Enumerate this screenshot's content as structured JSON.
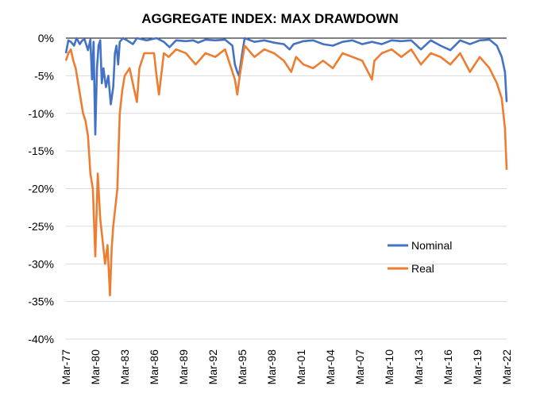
{
  "chart_data": {
    "type": "line",
    "title": "AGGREGATE INDEX: MAX DRAWDOWN",
    "xlabel": "",
    "ylabel": "",
    "x_ticks": [
      "Mar-77",
      "Mar-80",
      "Mar-83",
      "Mar-86",
      "Mar-89",
      "Mar-92",
      "Mar-95",
      "Mar-98",
      "Mar-01",
      "Mar-04",
      "Mar-07",
      "Mar-10",
      "Mar-13",
      "Mar-16",
      "Mar-19",
      "Mar-22"
    ],
    "x_range": [
      "1977-03",
      "2022-03"
    ],
    "y_ticks": [
      "0%",
      "-5%",
      "-10%",
      "-15%",
      "-20%",
      "-25%",
      "-30%",
      "-35%",
      "-40%"
    ],
    "ylim": [
      -40,
      0
    ],
    "grid": "horizontal",
    "legend_position": "lower-right",
    "series": [
      {
        "name": "Nominal",
        "color": "#4472C4",
        "points": [
          [
            "1977-03",
            -2.0
          ],
          [
            "1977-06",
            -0.3
          ],
          [
            "1977-09",
            -0.5
          ],
          [
            "1978-01",
            -1.0
          ],
          [
            "1978-04",
            0
          ],
          [
            "1978-08",
            -0.8
          ],
          [
            "1978-11",
            -0.3
          ],
          [
            "1979-02",
            -0.2
          ],
          [
            "1979-06",
            -1.6
          ],
          [
            "1979-09",
            -0.2
          ],
          [
            "1979-11",
            -5.5
          ],
          [
            "1980-01",
            -0.5
          ],
          [
            "1980-02",
            -7.5
          ],
          [
            "1980-03",
            -12.8
          ],
          [
            "1980-05",
            -4.0
          ],
          [
            "1980-07",
            -1.0
          ],
          [
            "1980-09",
            -0.3
          ],
          [
            "1980-11",
            -6.0
          ],
          [
            "1981-01",
            -4.0
          ],
          [
            "1981-04",
            -6.5
          ],
          [
            "1981-07",
            -5.0
          ],
          [
            "1981-10",
            -8.8
          ],
          [
            "1982-01",
            -6.5
          ],
          [
            "1982-03",
            -2.0
          ],
          [
            "1982-05",
            -1.0
          ],
          [
            "1982-07",
            -3.5
          ],
          [
            "1982-09",
            -0.5
          ],
          [
            "1983-01",
            0
          ],
          [
            "1983-06",
            -0.3
          ],
          [
            "1984-01",
            -0.8
          ],
          [
            "1984-06",
            0
          ],
          [
            "1985-06",
            -0.3
          ],
          [
            "1986-06",
            0
          ],
          [
            "1987-03",
            -0.5
          ],
          [
            "1987-10",
            -1.2
          ],
          [
            "1988-06",
            -0.3
          ],
          [
            "1989-06",
            -0.4
          ],
          [
            "1990-03",
            -0.3
          ],
          [
            "1990-09",
            -0.6
          ],
          [
            "1991-06",
            -0.2
          ],
          [
            "1992-06",
            -0.3
          ],
          [
            "1993-06",
            -0.2
          ],
          [
            "1994-03",
            -1.0
          ],
          [
            "1994-06",
            -3.5
          ],
          [
            "1994-09",
            -4.5
          ],
          [
            "1994-11",
            -5.0
          ],
          [
            "1995-03",
            -2.0
          ],
          [
            "1995-06",
            0
          ],
          [
            "1996-06",
            -0.5
          ],
          [
            "1997-06",
            -0.3
          ],
          [
            "1998-06",
            -0.6
          ],
          [
            "1999-06",
            -0.8
          ],
          [
            "2000-01",
            -1.5
          ],
          [
            "2000-06",
            -0.8
          ],
          [
            "2001-06",
            -0.4
          ],
          [
            "2002-06",
            -0.3
          ],
          [
            "2003-06",
            -0.8
          ],
          [
            "2004-06",
            -1.0
          ],
          [
            "2005-06",
            -0.5
          ],
          [
            "2006-06",
            -0.3
          ],
          [
            "2007-06",
            -0.8
          ],
          [
            "2008-06",
            -0.5
          ],
          [
            "2009-06",
            -0.8
          ],
          [
            "2010-06",
            -0.3
          ],
          [
            "2011-06",
            -0.4
          ],
          [
            "2012-06",
            -0.3
          ],
          [
            "2013-06",
            -1.5
          ],
          [
            "2014-06",
            -0.3
          ],
          [
            "2015-06",
            -1.0
          ],
          [
            "2016-06",
            -1.6
          ],
          [
            "2017-06",
            -0.3
          ],
          [
            "2018-06",
            -0.8
          ],
          [
            "2019-06",
            -0.3
          ],
          [
            "2020-06",
            -0.2
          ],
          [
            "2021-03",
            -1.0
          ],
          [
            "2021-09",
            -2.5
          ],
          [
            "2022-01",
            -4.5
          ],
          [
            "2022-03",
            -8.5
          ]
        ]
      },
      {
        "name": "Real",
        "color": "#ED7D31",
        "points": [
          [
            "1977-03",
            -3.0
          ],
          [
            "1977-06",
            -2.0
          ],
          [
            "1977-09",
            -1.5
          ],
          [
            "1977-12",
            -3.0
          ],
          [
            "1978-03",
            -4.0
          ],
          [
            "1978-06",
            -6.0
          ],
          [
            "1978-09",
            -8.0
          ],
          [
            "1978-12",
            -10.0
          ],
          [
            "1979-03",
            -11.0
          ],
          [
            "1979-06",
            -13.0
          ],
          [
            "1979-09",
            -18.0
          ],
          [
            "1979-12",
            -20.0
          ],
          [
            "1980-03",
            -29.0
          ],
          [
            "1980-06",
            -18.0
          ],
          [
            "1980-09",
            -24.0
          ],
          [
            "1980-12",
            -27.0
          ],
          [
            "1981-03",
            -30.0
          ],
          [
            "1981-06",
            -27.5
          ],
          [
            "1981-09",
            -34.2
          ],
          [
            "1981-11",
            -28.0
          ],
          [
            "1982-01",
            -25.0
          ],
          [
            "1982-03",
            -23.0
          ],
          [
            "1982-06",
            -20.0
          ],
          [
            "1982-09",
            -10.0
          ],
          [
            "1982-12",
            -7.0
          ],
          [
            "1983-03",
            -5.0
          ],
          [
            "1983-09",
            -4.0
          ],
          [
            "1984-03",
            -7.0
          ],
          [
            "1984-06",
            -8.5
          ],
          [
            "1984-09",
            -4.0
          ],
          [
            "1985-03",
            -2.0
          ],
          [
            "1986-03",
            -2.0
          ],
          [
            "1986-06",
            -5.0
          ],
          [
            "1986-09",
            -7.5
          ],
          [
            "1987-03",
            -2.0
          ],
          [
            "1987-09",
            -2.5
          ],
          [
            "1988-06",
            -1.5
          ],
          [
            "1989-06",
            -2.0
          ],
          [
            "1990-06",
            -3.5
          ],
          [
            "1991-06",
            -2.0
          ],
          [
            "1992-06",
            -2.5
          ],
          [
            "1993-06",
            -1.5
          ],
          [
            "1994-06",
            -5.5
          ],
          [
            "1994-09",
            -7.5
          ],
          [
            "1994-12",
            -5.0
          ],
          [
            "1995-06",
            -1.0
          ],
          [
            "1996-06",
            -2.5
          ],
          [
            "1997-06",
            -1.5
          ],
          [
            "1998-06",
            -2.0
          ],
          [
            "1999-06",
            -3.0
          ],
          [
            "2000-03",
            -4.5
          ],
          [
            "2000-09",
            -2.5
          ],
          [
            "2001-06",
            -3.5
          ],
          [
            "2002-06",
            -4.0
          ],
          [
            "2003-06",
            -3.0
          ],
          [
            "2004-06",
            -4.0
          ],
          [
            "2005-06",
            -2.0
          ],
          [
            "2006-06",
            -2.5
          ],
          [
            "2007-06",
            -3.0
          ],
          [
            "2008-06",
            -5.5
          ],
          [
            "2008-09",
            -3.0
          ],
          [
            "2009-06",
            -2.0
          ],
          [
            "2010-06",
            -1.5
          ],
          [
            "2011-06",
            -2.5
          ],
          [
            "2012-06",
            -1.5
          ],
          [
            "2013-06",
            -3.5
          ],
          [
            "2014-06",
            -2.0
          ],
          [
            "2015-06",
            -2.5
          ],
          [
            "2016-06",
            -3.5
          ],
          [
            "2017-06",
            -2.0
          ],
          [
            "2018-06",
            -4.5
          ],
          [
            "2019-06",
            -2.5
          ],
          [
            "2020-06",
            -4.0
          ],
          [
            "2021-03",
            -6.0
          ],
          [
            "2021-09",
            -8.0
          ],
          [
            "2022-01",
            -12.0
          ],
          [
            "2022-03",
            -17.5
          ]
        ]
      }
    ]
  }
}
